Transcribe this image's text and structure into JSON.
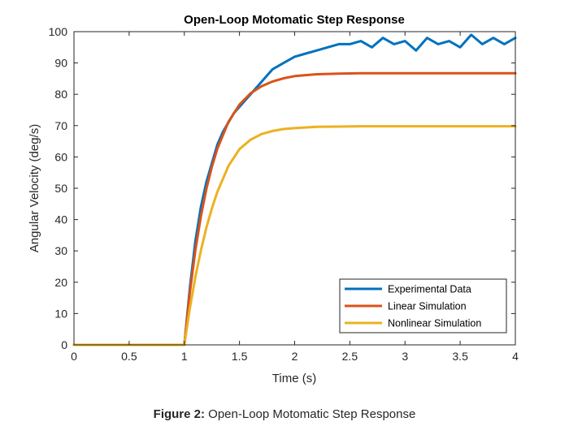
{
  "chart_data": {
    "type": "line",
    "title": "Open-Loop Motomatic Step Response",
    "xlabel": "Time (s)",
    "ylabel": "Angular Velocity (deg/s)",
    "xlim": [
      0,
      4
    ],
    "ylim": [
      0,
      100
    ],
    "xticks": [
      0,
      0.5,
      1,
      1.5,
      2,
      2.5,
      3,
      3.5,
      4
    ],
    "yticks": [
      0,
      10,
      20,
      30,
      40,
      50,
      60,
      70,
      80,
      90,
      100
    ],
    "xtick_labels": [
      "0",
      "0.5",
      "1",
      "1.5",
      "2",
      "2.5",
      "3",
      "3.5",
      "4"
    ],
    "ytick_labels": [
      "0",
      "10",
      "20",
      "30",
      "40",
      "50",
      "60",
      "70",
      "80",
      "90",
      "100"
    ],
    "grid": false,
    "legend_position": "bottom-right",
    "series": [
      {
        "name": "Experimental Data",
        "color": "#0072BD",
        "x": [
          0,
          1.0,
          1.05,
          1.1,
          1.15,
          1.2,
          1.25,
          1.3,
          1.35,
          1.4,
          1.45,
          1.5,
          1.6,
          1.7,
          1.8,
          1.9,
          2.0,
          2.1,
          2.2,
          2.3,
          2.4,
          2.5,
          2.6,
          2.7,
          2.8,
          2.9,
          3.0,
          3.1,
          3.2,
          3.3,
          3.4,
          3.5,
          3.6,
          3.7,
          3.8,
          3.9,
          4.0
        ],
        "y": [
          0,
          0,
          18,
          33,
          44,
          52,
          58,
          64,
          68,
          71,
          74,
          76,
          80,
          84,
          88,
          90,
          92,
          93,
          94,
          95,
          96,
          96,
          97,
          95,
          98,
          96,
          97,
          94,
          98,
          96,
          97,
          95,
          99,
          96,
          98,
          96,
          98
        ]
      },
      {
        "name": "Linear Simulation",
        "color": "#D95319",
        "x": [
          0,
          1.0,
          1.05,
          1.1,
          1.15,
          1.2,
          1.25,
          1.3,
          1.4,
          1.5,
          1.6,
          1.7,
          1.8,
          1.9,
          2.0,
          2.2,
          2.4,
          2.6,
          2.8,
          3.0,
          3.2,
          3.5,
          4.0
        ],
        "y": [
          0,
          0,
          16.6,
          30.1,
          41.0,
          49.8,
          56.9,
          62.7,
          71.2,
          76.7,
          80.3,
          82.6,
          84.1,
          85.1,
          85.8,
          86.4,
          86.6,
          86.7,
          86.7,
          86.7,
          86.7,
          86.7,
          86.7
        ]
      },
      {
        "name": "Nonlinear Simulation",
        "color": "#EDB120",
        "x": [
          0,
          1.0,
          1.05,
          1.1,
          1.15,
          1.2,
          1.25,
          1.3,
          1.4,
          1.5,
          1.6,
          1.7,
          1.8,
          1.9,
          2.0,
          2.2,
          2.4,
          2.6,
          2.8,
          3.0,
          3.2,
          3.5,
          4.0
        ],
        "y": [
          0,
          0,
          11.6,
          21.6,
          30.1,
          37.4,
          43.6,
          48.9,
          57.1,
          62.5,
          65.5,
          67.3,
          68.3,
          68.9,
          69.2,
          69.6,
          69.7,
          69.8,
          69.8,
          69.8,
          69.8,
          69.8,
          69.8
        ]
      }
    ]
  },
  "caption": {
    "prefix": "Figure 2:",
    "text": " Open-Loop Motomatic Step Response"
  }
}
